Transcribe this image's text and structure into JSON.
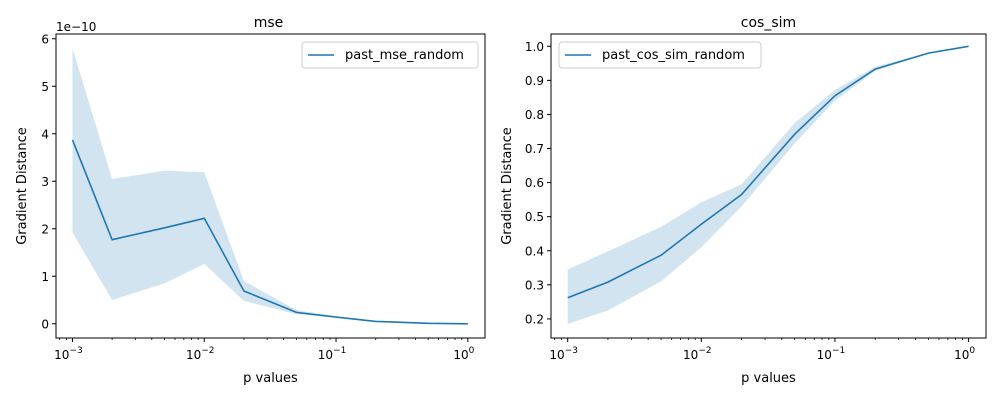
{
  "chart_data": [
    {
      "type": "line",
      "title": "mse",
      "xlabel": "p values",
      "ylabel": "Gradient Distance",
      "xscale": "log",
      "xlim": [
        0.00075,
        1.35
      ],
      "ylim": [
        -0.3,
        6.1
      ],
      "y_multiplier_label": "1e−10",
      "xticks": [
        {
          "value": 0.001,
          "base": "10",
          "exp": "−3"
        },
        {
          "value": 0.01,
          "base": "10",
          "exp": "−2"
        },
        {
          "value": 0.1,
          "base": "10",
          "exp": "−1"
        },
        {
          "value": 1,
          "base": "10",
          "exp": "0"
        }
      ],
      "yticks": [
        {
          "value": 0,
          "label": "0"
        },
        {
          "value": 1,
          "label": "1"
        },
        {
          "value": 2,
          "label": "2"
        },
        {
          "value": 3,
          "label": "3"
        },
        {
          "value": 4,
          "label": "4"
        },
        {
          "value": 5,
          "label": "5"
        },
        {
          "value": 6,
          "label": "6"
        }
      ],
      "legend_position": "top-right",
      "series": [
        {
          "name": "past_mse_random",
          "color": "#1f77b4",
          "band_color": "#1f77b4",
          "x": [
            0.001,
            0.002,
            0.005,
            0.01,
            0.02,
            0.05,
            0.1,
            0.2,
            0.5,
            1
          ],
          "y": [
            3.87,
            1.77,
            2.02,
            2.22,
            0.69,
            0.24,
            0.14,
            0.05,
            0.01,
            0.0
          ],
          "y_lower": [
            1.92,
            0.5,
            0.85,
            1.26,
            0.48,
            0.2,
            0.13,
            0.05,
            0.01,
            0.0
          ],
          "y_upper": [
            5.8,
            3.05,
            3.22,
            3.19,
            0.9,
            0.29,
            0.15,
            0.06,
            0.01,
            0.0
          ]
        }
      ]
    },
    {
      "type": "line",
      "title": "cos_sim",
      "xlabel": "p values",
      "ylabel": "Gradient Distance",
      "xscale": "log",
      "xlim": [
        0.00075,
        1.35
      ],
      "ylim": [
        0.144,
        1.036
      ],
      "xticks": [
        {
          "value": 0.001,
          "base": "10",
          "exp": "−3"
        },
        {
          "value": 0.01,
          "base": "10",
          "exp": "−2"
        },
        {
          "value": 0.1,
          "base": "10",
          "exp": "−1"
        },
        {
          "value": 1,
          "base": "10",
          "exp": "0"
        }
      ],
      "yticks": [
        {
          "value": 0.2,
          "label": "0.2"
        },
        {
          "value": 0.3,
          "label": "0.3"
        },
        {
          "value": 0.4,
          "label": "0.4"
        },
        {
          "value": 0.5,
          "label": "0.5"
        },
        {
          "value": 0.6,
          "label": "0.6"
        },
        {
          "value": 0.7,
          "label": "0.7"
        },
        {
          "value": 0.8,
          "label": "0.8"
        },
        {
          "value": 0.9,
          "label": "0.9"
        },
        {
          "value": 1.0,
          "label": "1.0"
        }
      ],
      "legend_position": "top-left",
      "series": [
        {
          "name": "past_cos_sim_random",
          "color": "#1f77b4",
          "band_color": "#1f77b4",
          "x": [
            0.001,
            0.002,
            0.005,
            0.01,
            0.02,
            0.05,
            0.1,
            0.2,
            0.5,
            1
          ],
          "y": [
            0.262,
            0.308,
            0.387,
            0.478,
            0.565,
            0.742,
            0.855,
            0.933,
            0.98,
            1.0
          ],
          "y_lower": [
            0.185,
            0.225,
            0.31,
            0.41,
            0.53,
            0.715,
            0.84,
            0.928,
            0.979,
            1.0
          ],
          "y_upper": [
            0.345,
            0.398,
            0.47,
            0.542,
            0.595,
            0.775,
            0.872,
            0.94,
            0.981,
            1.0
          ]
        }
      ]
    }
  ]
}
